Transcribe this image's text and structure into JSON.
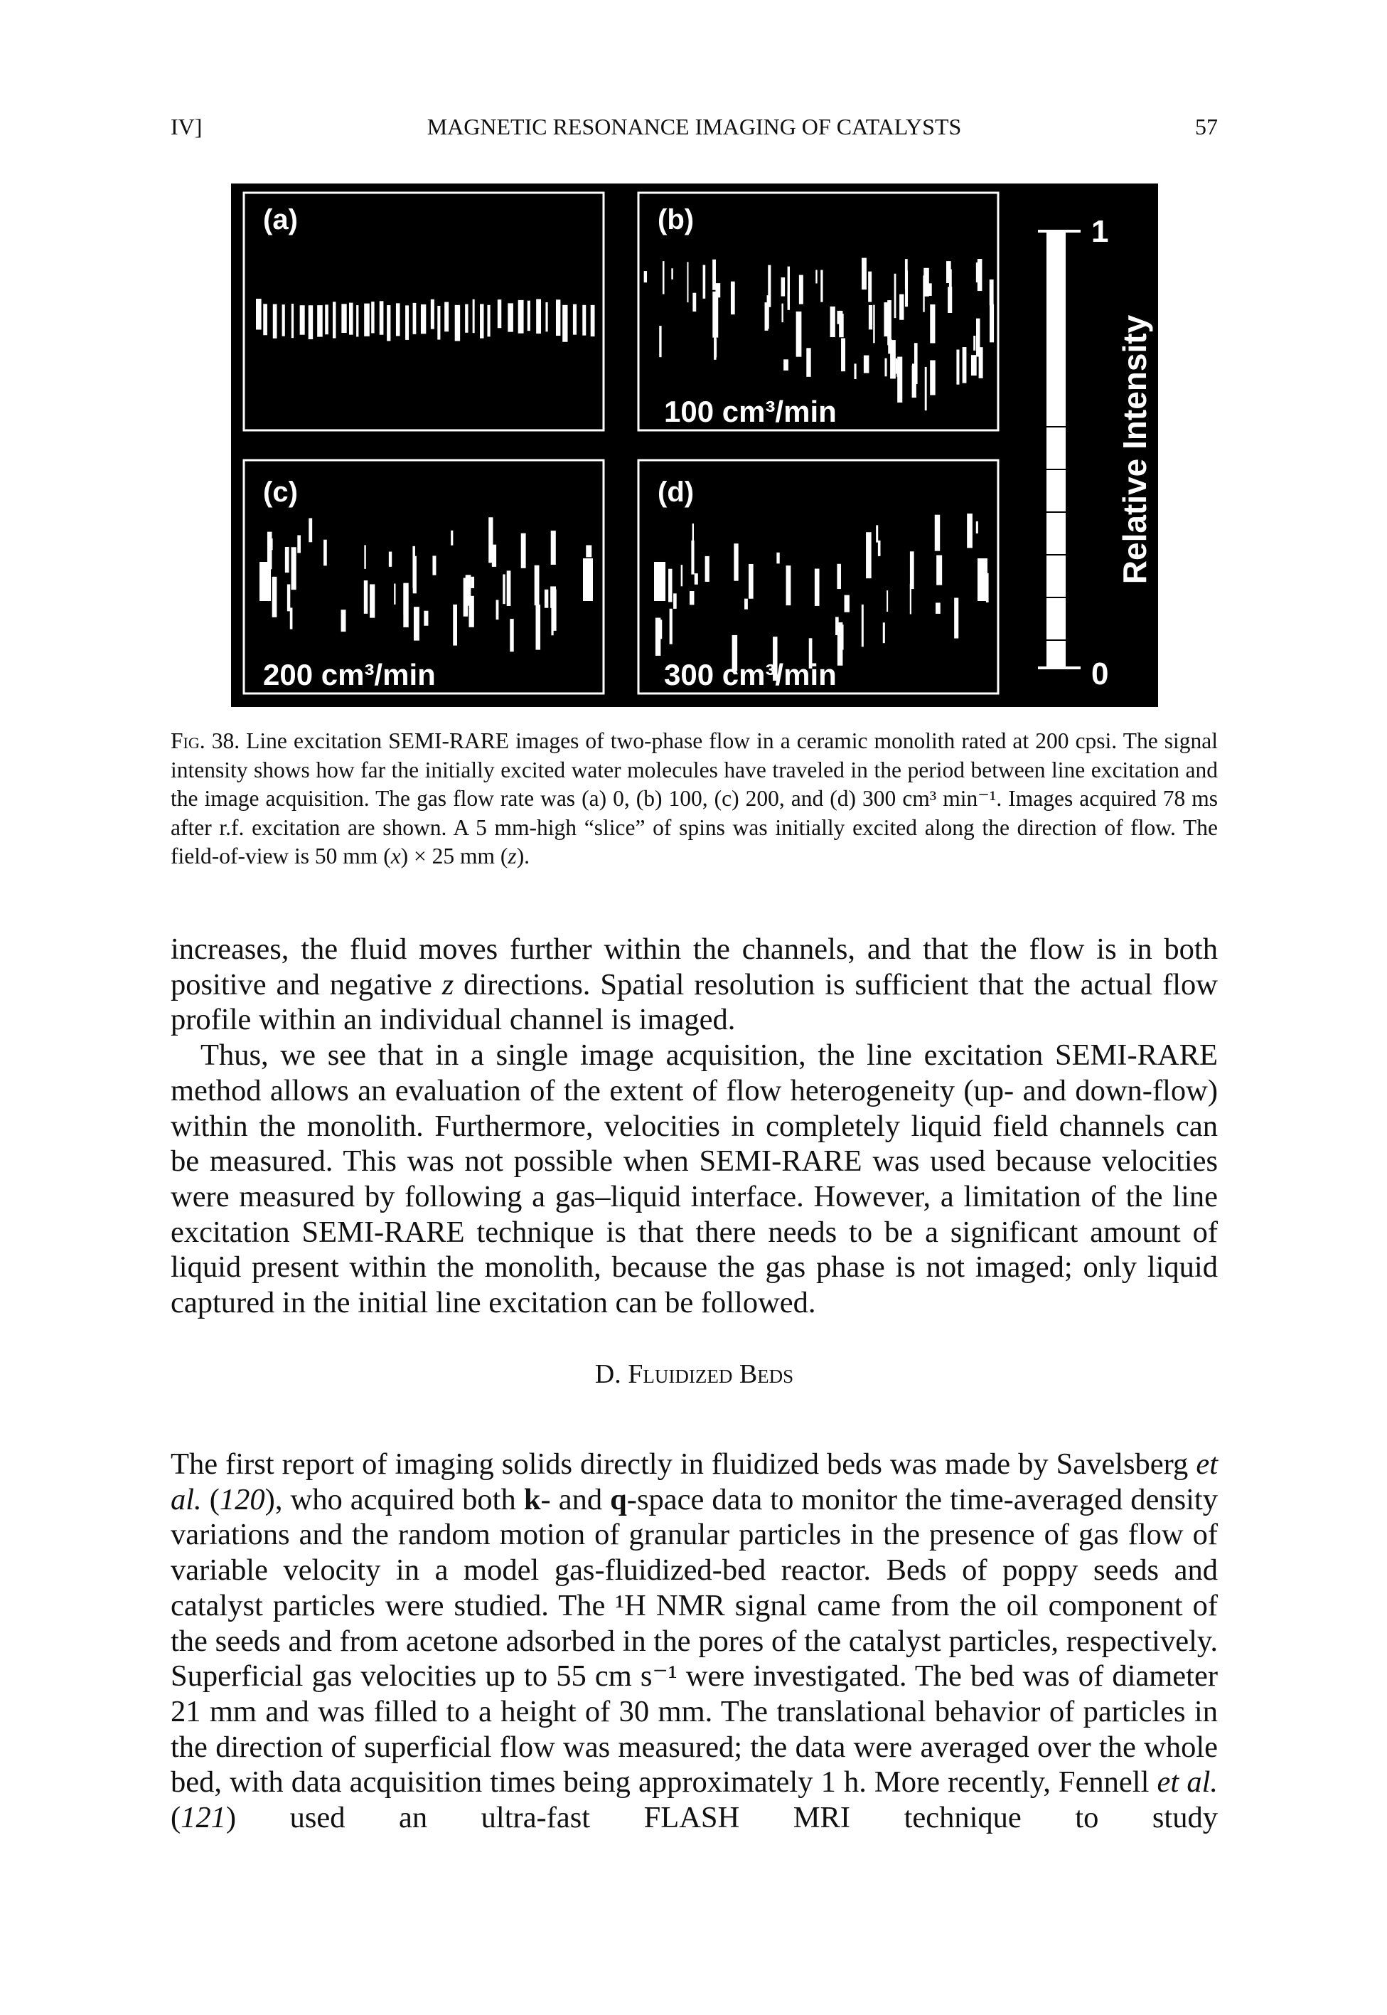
{
  "header": {
    "left": "IV]",
    "title": "MAGNETIC RESONANCE IMAGING OF CATALYSTS",
    "page": "57"
  },
  "figure": {
    "panels": [
      {
        "label": "(a)"
      },
      {
        "label": "(b)",
        "flow": "100 cm³/min"
      },
      {
        "label": "(c)",
        "flow": "200 cm³/min"
      },
      {
        "label": "(d)",
        "flow": "300 cm³/min"
      }
    ],
    "colorbar": {
      "max": "1",
      "min": "0",
      "label": "Relative Intensity"
    },
    "caption": {
      "label": "Fig. 38.",
      "text": [
        "Line excitation SEMI-RARE images of two-phase flow in a ceramic monolith rated at 200 cpsi. The signal intensity shows how far the initially excited water molecules have traveled in the period between line excitation and the image acquisition. The gas flow rate was (a) 0, (b) 100, (c) 200, and (d) 300 cm³ min⁻¹. Images acquired 78 ms after r.f. excitation are shown. A 5 mm-high “slice” of spins was initially excited along the direction of flow. The field-of-view is 50 mm (",
        {
          "i": "x"
        },
        ") × 25 mm (",
        {
          "i": "z"
        },
        ")."
      ]
    }
  },
  "body": {
    "paragraphs_before": [
      [
        "increases, the fluid moves further within the channels, and that the flow is in both positive and negative ",
        {
          "i": "z"
        },
        " directions. Spatial resolution is sufficient that the actual flow profile within an individual channel is imaged."
      ],
      [
        "Thus, we see that in a single image acquisition, the line excitation SEMI-RARE method allows an evaluation of the extent of flow heterogeneity (up- and down-flow) within the monolith. Furthermore, velocities in completely liquid field channels can be measured. This was not possible when SEMI-RARE was used because velocities were measured by following a gas–liquid interface. However, a limitation of the line excitation SEMI-RARE technique is that there needs to be a significant amount of liquid present within the monolith, because the gas phase is not imaged; only liquid captured in the initial line excitation can be followed."
      ]
    ],
    "heading": "D. Fluidized Beds",
    "paragraphs_after": [
      [
        "The first report of imaging solids directly in fluidized beds was made by Savelsberg ",
        {
          "i": "et al."
        },
        " (",
        {
          "i": "120"
        },
        "), who acquired both ",
        {
          "b": "k"
        },
        "- and ",
        {
          "b": "q"
        },
        "-space data to monitor the time-averaged density variations and the random motion of granular particles in the presence of gas flow of variable velocity in a model gas-fluidized-bed reactor. Beds of poppy seeds and catalyst particles were studied. The ¹H NMR signal came from the oil component of the seeds and from acetone adsorbed in the pores of the catalyst particles, respectively. Superficial gas velocities up to 55 cm s⁻¹ were investigated. The bed was of diameter 21 mm and was filled to a height of 30 mm. The translational behavior of particles in the direction of superficial flow was measured; the data were averaged over the whole bed, with data acquisition times being approximately 1 h. More recently, Fennell ",
        {
          "i": "et al."
        },
        " (",
        {
          "i": "121"
        },
        ") used an ultra-fast FLASH MRI technique to study"
      ]
    ]
  }
}
